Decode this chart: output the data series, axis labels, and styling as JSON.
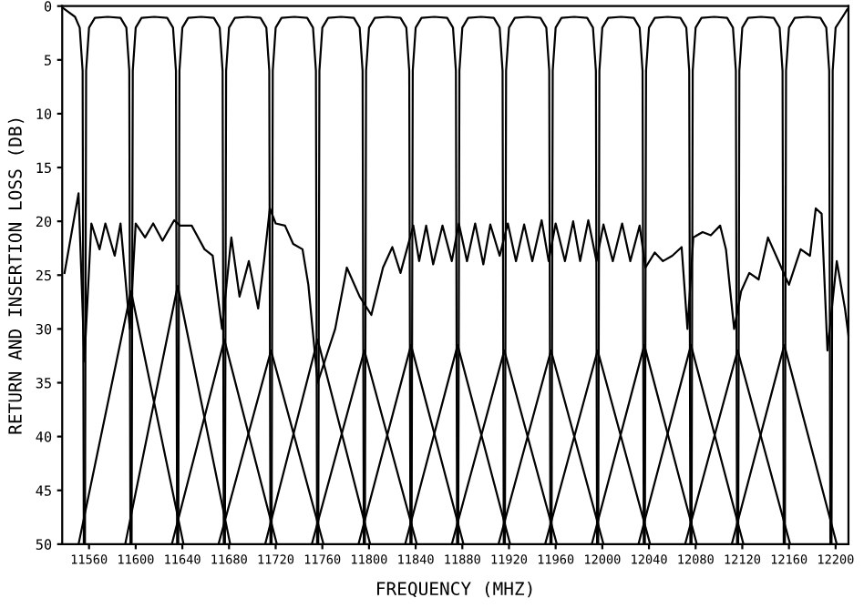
{
  "chart_data": {
    "type": "line",
    "xlabel": "FREQUENCY (MHZ)",
    "ylabel": "RETURN AND INSERTION LOSS (DB)",
    "xlim": [
      11537,
      12211
    ],
    "ylim": [
      50,
      0
    ],
    "xticks": [
      11560,
      11600,
      11640,
      11680,
      11720,
      11760,
      11800,
      11840,
      11880,
      11920,
      11960,
      12000,
      12040,
      12080,
      12120,
      12160,
      12200
    ],
    "yticks": [
      0,
      5,
      10,
      15,
      20,
      25,
      30,
      35,
      40,
      45,
      50
    ],
    "grid": false,
    "legend": false,
    "marker": "none",
    "line_style": "solid",
    "series": [
      {
        "color": "#000000",
        "x": [
          11538,
          11548,
          11552,
          11554.5,
          11555.5
        ],
        "values": [
          0.2,
          1,
          2,
          6,
          50
        ]
      },
      {
        "color": "#000000",
        "x": [
          11556.5,
          11557.5,
          11560,
          11565,
          11576,
          11587,
          11592,
          11594.5,
          11595.5
        ],
        "values": [
          50,
          6,
          2,
          1.1,
          1,
          1.1,
          2,
          6,
          50
        ]
      },
      {
        "color": "#000000",
        "x": [
          11596.5,
          11597.5,
          11600,
          11605,
          11616,
          11627,
          11632,
          11634.5,
          11635.5
        ],
        "values": [
          50,
          6,
          2,
          1.1,
          1,
          1.1,
          2,
          6,
          50
        ]
      },
      {
        "color": "#000000",
        "x": [
          11636.5,
          11637.5,
          11640,
          11645,
          11656,
          11667,
          11672,
          11674.5,
          11675.5
        ],
        "values": [
          50,
          6,
          2,
          1.1,
          1,
          1.1,
          2,
          6,
          50
        ]
      },
      {
        "color": "#000000",
        "x": [
          11676.5,
          11677.5,
          11680,
          11685,
          11696,
          11707,
          11712,
          11714.5,
          11715.5
        ],
        "values": [
          50,
          6,
          2,
          1.1,
          1,
          1.1,
          2,
          6,
          50
        ]
      },
      {
        "color": "#000000",
        "x": [
          11716.5,
          11717.5,
          11720,
          11725,
          11736,
          11747,
          11752,
          11754.5,
          11755.5
        ],
        "values": [
          50,
          6,
          2,
          1.1,
          1,
          1.1,
          2,
          6,
          50
        ]
      },
      {
        "color": "#000000",
        "x": [
          11756.5,
          11757.5,
          11760,
          11765,
          11776,
          11787,
          11792,
          11794.5,
          11795.5
        ],
        "values": [
          50,
          6,
          2,
          1.1,
          1,
          1.1,
          2,
          6,
          50
        ]
      },
      {
        "color": "#000000",
        "x": [
          11796.5,
          11797.5,
          11800,
          11805,
          11816,
          11827,
          11832,
          11834.5,
          11835.5
        ],
        "values": [
          50,
          6,
          2,
          1.1,
          1,
          1.1,
          2,
          6,
          50
        ]
      },
      {
        "color": "#000000",
        "x": [
          11836.5,
          11837.5,
          11840,
          11845,
          11856,
          11867,
          11872,
          11874.5,
          11875.5
        ],
        "values": [
          50,
          6,
          2,
          1.1,
          1,
          1.1,
          2,
          6,
          50
        ]
      },
      {
        "color": "#000000",
        "x": [
          11876.5,
          11877.5,
          11880,
          11885,
          11896,
          11907,
          11912,
          11914.5,
          11915.5
        ],
        "values": [
          50,
          6,
          2,
          1.1,
          1,
          1.1,
          2,
          6,
          50
        ]
      },
      {
        "color": "#000000",
        "x": [
          11916.5,
          11917.5,
          11920,
          11925,
          11936,
          11947,
          11952,
          11954.5,
          11955.5
        ],
        "values": [
          50,
          6,
          2,
          1.1,
          1,
          1.1,
          2,
          6,
          50
        ]
      },
      {
        "color": "#000000",
        "x": [
          11956.5,
          11957.5,
          11960,
          11965,
          11976,
          11987,
          11992,
          11994.5,
          11995.5
        ],
        "values": [
          50,
          6,
          2,
          1.1,
          1,
          1.1,
          2,
          6,
          50
        ]
      },
      {
        "color": "#000000",
        "x": [
          11996.5,
          11997.5,
          12000,
          12005,
          12016,
          12027,
          12032,
          12034.5,
          12035.5
        ],
        "values": [
          50,
          6,
          2,
          1.1,
          1,
          1.1,
          2,
          6,
          50
        ]
      },
      {
        "color": "#000000",
        "x": [
          12036.5,
          12037.5,
          12040,
          12045,
          12056,
          12067,
          12072,
          12074.5,
          12075.5
        ],
        "values": [
          50,
          6,
          2,
          1.1,
          1,
          1.1,
          2,
          6,
          50
        ]
      },
      {
        "color": "#000000",
        "x": [
          12076.5,
          12077.5,
          12080,
          12085,
          12096,
          12107,
          12112,
          12114.5,
          12115.5
        ],
        "values": [
          50,
          6,
          2,
          1.1,
          1,
          1.1,
          2,
          6,
          50
        ]
      },
      {
        "color": "#000000",
        "x": [
          12116.5,
          12117.5,
          12120,
          12125,
          12136,
          12147,
          12152,
          12154.5,
          12155.5
        ],
        "values": [
          50,
          6,
          2,
          1.1,
          1,
          1.1,
          2,
          6,
          50
        ]
      },
      {
        "color": "#000000",
        "x": [
          12156.5,
          12157.5,
          12160,
          12165,
          12176,
          12187,
          12192,
          12194.5,
          12195.5
        ],
        "values": [
          50,
          6,
          2,
          1.1,
          1,
          1.1,
          2,
          6,
          50
        ]
      },
      {
        "color": "#000000",
        "x": [
          12196.5,
          12197.5,
          12200,
          12206,
          12210
        ],
        "values": [
          50,
          6,
          2,
          1,
          0.3
        ]
      },
      {
        "color": "#000000",
        "x": [
          11551,
          11596,
          11641
        ],
        "values": [
          50,
          26.5,
          50
        ]
      },
      {
        "color": "#000000",
        "x": [
          11591,
          11636,
          11681
        ],
        "values": [
          50,
          26,
          50
        ]
      },
      {
        "color": "#000000",
        "x": [
          11631,
          11676,
          11721
        ],
        "values": [
          50,
          31,
          50
        ]
      },
      {
        "color": "#000000",
        "x": [
          11671,
          11716,
          11761
        ],
        "values": [
          50,
          32,
          50
        ]
      },
      {
        "color": "#000000",
        "x": [
          11711,
          11756,
          11801
        ],
        "values": [
          50,
          31,
          50
        ]
      },
      {
        "color": "#000000",
        "x": [
          11751,
          11796,
          11841
        ],
        "values": [
          50,
          32,
          50
        ]
      },
      {
        "color": "#000000",
        "x": [
          11791,
          11836,
          11881
        ],
        "values": [
          50,
          31.5,
          50
        ]
      },
      {
        "color": "#000000",
        "x": [
          11831,
          11876,
          11921
        ],
        "values": [
          50,
          31.5,
          50
        ]
      },
      {
        "color": "#000000",
        "x": [
          11871,
          11916,
          11961
        ],
        "values": [
          50,
          32,
          50
        ]
      },
      {
        "color": "#000000",
        "x": [
          11911,
          11956,
          12001
        ],
        "values": [
          50,
          32,
          50
        ]
      },
      {
        "color": "#000000",
        "x": [
          11951,
          11996,
          12041
        ],
        "values": [
          50,
          32,
          50
        ]
      },
      {
        "color": "#000000",
        "x": [
          11991,
          12036,
          12081
        ],
        "values": [
          50,
          31.5,
          50
        ]
      },
      {
        "color": "#000000",
        "x": [
          12031,
          12076,
          12121
        ],
        "values": [
          50,
          31.5,
          50
        ]
      },
      {
        "color": "#000000",
        "x": [
          12071,
          12116,
          12161
        ],
        "values": [
          50,
          32,
          50
        ]
      },
      {
        "color": "#000000",
        "x": [
          12111,
          12156,
          12201
        ],
        "values": [
          50,
          31.5,
          50
        ]
      },
      {
        "color": "#000000",
        "x": [
          11539,
          11551,
          11556,
          11562,
          11569,
          11574,
          11582,
          11587,
          11595,
          11600,
          11608,
          11615,
          11623,
          11633,
          11638,
          11648,
          11659,
          11666,
          11674,
          11682,
          11689,
          11697,
          11705,
          11710,
          11715,
          11720,
          11728,
          11735,
          11743,
          11748,
          11756,
          11771,
          11781,
          11792,
          11802,
          11812,
          11820,
          11827,
          11838,
          11843,
          11849,
          11855,
          11863,
          11871,
          11877,
          11884,
          11891,
          11898,
          11904,
          11912,
          11919,
          11926,
          11933,
          11940,
          11948,
          11954,
          11960,
          11968,
          11975,
          11981,
          11988,
          11995,
          12001,
          12009,
          12017,
          12024,
          12032,
          12037,
          12045,
          12052,
          12060,
          12068,
          12073,
          12078,
          12086,
          12093,
          12101,
          12106,
          12113,
          12119,
          12126,
          12134,
          12142,
          12149,
          12160,
          12170,
          12178,
          12183,
          12188,
          12193,
          12201,
          12208,
          12211
        ],
        "values": [
          24.8,
          17.4,
          33,
          20.2,
          22.6,
          20.2,
          23.2,
          20.2,
          30,
          20.2,
          21.5,
          20.2,
          21.8,
          19.9,
          20.4,
          20.4,
          22.6,
          23.2,
          30,
          21.5,
          27.0,
          23.7,
          28.1,
          23.7,
          18.8,
          20.2,
          20.4,
          22.1,
          22.6,
          25.9,
          35,
          30,
          24.3,
          27.0,
          28.7,
          24.3,
          22.4,
          24.8,
          20.4,
          23.7,
          20.4,
          24.0,
          20.4,
          23.7,
          20.2,
          23.7,
          20.2,
          24.0,
          20.3,
          23.2,
          20.2,
          23.7,
          20.3,
          23.7,
          19.9,
          23.7,
          20.2,
          23.7,
          20.0,
          23.7,
          19.9,
          23.7,
          20.3,
          23.7,
          20.2,
          23.7,
          20.4,
          24.3,
          22.9,
          23.7,
          23.2,
          22.4,
          30,
          21.5,
          21.0,
          21.3,
          20.4,
          22.6,
          30,
          26.5,
          24.8,
          25.4,
          21.5,
          23.2,
          25.9,
          22.6,
          23.2,
          18.8,
          19.3,
          32,
          23.7,
          28.1,
          30.6
        ]
      }
    ]
  }
}
